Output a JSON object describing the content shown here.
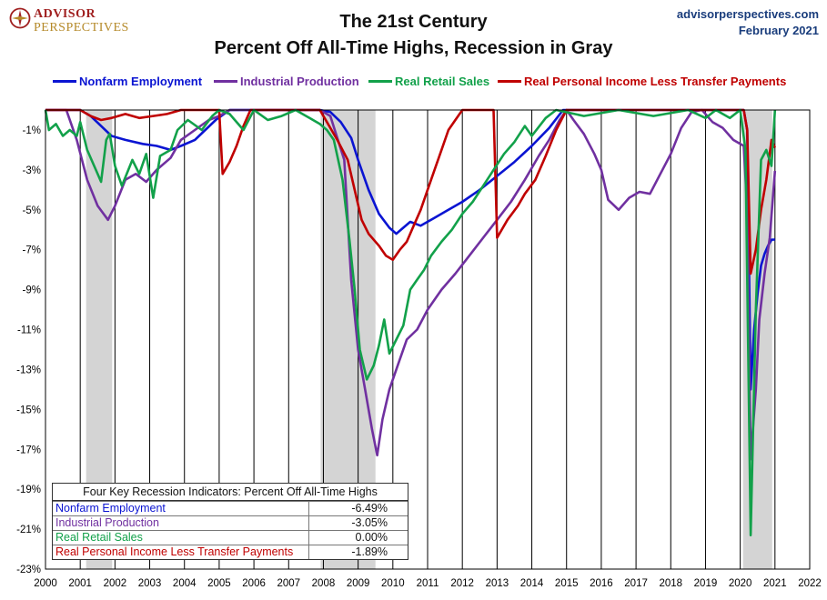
{
  "header": {
    "logo_line1": "ADVISOR",
    "logo_line2": "PERSPECTIVES",
    "title_line1": "The 21st Century",
    "title_line2": "Percent Off All-Time Highs, Recession in Gray",
    "source_site": "advisorperspectives.com",
    "source_date": "February 2021"
  },
  "colors": {
    "Nonfarm Employment": "#0a14d2",
    "Industrial Production": "#7030a0",
    "Real Retail Sales": "#12a14a",
    "Real Personal Income Less Transfer Payments": "#c00000",
    "recession": "#d4d4d4"
  },
  "summary_table": {
    "title": "Four Key Recession Indicators: Percent Off All-Time Highs",
    "rows": [
      {
        "label": "Nonfarm Employment",
        "value": "-6.49%"
      },
      {
        "label": "Industrial Production",
        "value": "-3.05%"
      },
      {
        "label": "Real Retail Sales",
        "value": "0.00%"
      },
      {
        "label": "Real Personal Income Less Transfer Payments",
        "value": "-1.89%"
      }
    ]
  },
  "chart_data": {
    "type": "line",
    "title": "Percent Off All-Time Highs, Recession in Gray",
    "xlabel": "",
    "ylabel": "",
    "xlim": [
      2000,
      2022
    ],
    "ylim": [
      -23,
      0
    ],
    "x_ticks": [
      "2000",
      "2001",
      "2002",
      "2003",
      "2004",
      "2005",
      "2006",
      "2007",
      "2008",
      "2009",
      "2010",
      "2011",
      "2012",
      "2013",
      "2014",
      "2015",
      "2016",
      "2017",
      "2018",
      "2019",
      "2020",
      "2021",
      "2022"
    ],
    "y_ticks": [
      "-1%",
      "-3%",
      "-5%",
      "-7%",
      "-9%",
      "-11%",
      "-13%",
      "-15%",
      "-17%",
      "-19%",
      "-21%",
      "-23%"
    ],
    "legend_position": "top",
    "grid": "vertical",
    "recessions": [
      [
        2001.17,
        2001.92
      ],
      [
        2007.92,
        2009.5
      ],
      [
        2020.08,
        2020.92
      ]
    ],
    "series": [
      {
        "name": "Nonfarm Employment",
        "points": [
          [
            2000.0,
            0
          ],
          [
            2001.0,
            0
          ],
          [
            2001.3,
            -0.3
          ],
          [
            2001.6,
            -0.8
          ],
          [
            2001.9,
            -1.3
          ],
          [
            2002.3,
            -1.5
          ],
          [
            2002.8,
            -1.7
          ],
          [
            2003.2,
            -1.8
          ],
          [
            2003.6,
            -2.0
          ],
          [
            2003.9,
            -1.8
          ],
          [
            2004.3,
            -1.5
          ],
          [
            2004.6,
            -1.0
          ],
          [
            2004.9,
            -0.5
          ],
          [
            2005.3,
            0
          ],
          [
            2007.9,
            0
          ],
          [
            2008.2,
            -0.1
          ],
          [
            2008.5,
            -0.6
          ],
          [
            2008.8,
            -1.4
          ],
          [
            2009.0,
            -2.5
          ],
          [
            2009.3,
            -4.0
          ],
          [
            2009.6,
            -5.2
          ],
          [
            2009.9,
            -5.9
          ],
          [
            2010.1,
            -6.2
          ],
          [
            2010.3,
            -5.9
          ],
          [
            2010.5,
            -5.6
          ],
          [
            2010.8,
            -5.8
          ],
          [
            2011.2,
            -5.4
          ],
          [
            2011.6,
            -5.0
          ],
          [
            2012.0,
            -4.6
          ],
          [
            2012.5,
            -4.0
          ],
          [
            2013.0,
            -3.3
          ],
          [
            2013.5,
            -2.6
          ],
          [
            2014.0,
            -1.8
          ],
          [
            2014.5,
            -0.9
          ],
          [
            2014.9,
            0
          ],
          [
            2020.1,
            0
          ],
          [
            2020.2,
            -1.0
          ],
          [
            2020.3,
            -14.0
          ],
          [
            2020.4,
            -11.0
          ],
          [
            2020.5,
            -9.2
          ],
          [
            2020.6,
            -7.8
          ],
          [
            2020.7,
            -7.2
          ],
          [
            2020.8,
            -6.8
          ],
          [
            2020.9,
            -6.5
          ],
          [
            2021.0,
            -6.49
          ]
        ]
      },
      {
        "name": "Industrial Production",
        "points": [
          [
            2000.0,
            0
          ],
          [
            2000.6,
            0
          ],
          [
            2000.9,
            -1.5
          ],
          [
            2001.2,
            -3.5
          ],
          [
            2001.5,
            -4.8
          ],
          [
            2001.8,
            -5.5
          ],
          [
            2002.0,
            -4.8
          ],
          [
            2002.3,
            -3.5
          ],
          [
            2002.6,
            -3.2
          ],
          [
            2002.9,
            -3.6
          ],
          [
            2003.2,
            -3.0
          ],
          [
            2003.6,
            -2.4
          ],
          [
            2003.9,
            -1.5
          ],
          [
            2004.3,
            -1.0
          ],
          [
            2004.7,
            -0.5
          ],
          [
            2005.0,
            -0.3
          ],
          [
            2005.3,
            0
          ],
          [
            2007.9,
            0
          ],
          [
            2008.2,
            -0.3
          ],
          [
            2008.6,
            -2.5
          ],
          [
            2008.8,
            -8.5
          ],
          [
            2009.0,
            -12.0
          ],
          [
            2009.2,
            -14.0
          ],
          [
            2009.4,
            -16.0
          ],
          [
            2009.55,
            -17.3
          ],
          [
            2009.7,
            -15.5
          ],
          [
            2009.9,
            -14.0
          ],
          [
            2010.1,
            -13.0
          ],
          [
            2010.4,
            -11.5
          ],
          [
            2010.7,
            -11.0
          ],
          [
            2011.0,
            -10.0
          ],
          [
            2011.4,
            -9.0
          ],
          [
            2011.8,
            -8.2
          ],
          [
            2012.2,
            -7.3
          ],
          [
            2012.6,
            -6.4
          ],
          [
            2013.0,
            -5.5
          ],
          [
            2013.4,
            -4.6
          ],
          [
            2013.8,
            -3.5
          ],
          [
            2014.2,
            -2.3
          ],
          [
            2014.5,
            -1.5
          ],
          [
            2014.8,
            -0.5
          ],
          [
            2015.0,
            0
          ],
          [
            2015.2,
            -0.5
          ],
          [
            2015.5,
            -1.2
          ],
          [
            2015.8,
            -2.2
          ],
          [
            2016.0,
            -3.0
          ],
          [
            2016.2,
            -4.5
          ],
          [
            2016.5,
            -5.0
          ],
          [
            2016.8,
            -4.4
          ],
          [
            2017.1,
            -4.1
          ],
          [
            2017.4,
            -4.2
          ],
          [
            2017.7,
            -3.2
          ],
          [
            2018.0,
            -2.2
          ],
          [
            2018.3,
            -0.9
          ],
          [
            2018.6,
            -0.1
          ],
          [
            2018.9,
            0
          ],
          [
            2019.2,
            -0.6
          ],
          [
            2019.5,
            -0.9
          ],
          [
            2019.8,
            -1.5
          ],
          [
            2020.1,
            -1.8
          ],
          [
            2020.2,
            -5.0
          ],
          [
            2020.3,
            -17.5
          ],
          [
            2020.45,
            -14.0
          ],
          [
            2020.55,
            -10.5
          ],
          [
            2020.7,
            -8.2
          ],
          [
            2020.85,
            -6.4
          ],
          [
            2021.0,
            -3.05
          ]
        ]
      },
      {
        "name": "Real Retail Sales",
        "points": [
          [
            2000.0,
            0
          ],
          [
            2000.1,
            -1.0
          ],
          [
            2000.3,
            -0.7
          ],
          [
            2000.5,
            -1.3
          ],
          [
            2000.7,
            -1.0
          ],
          [
            2000.9,
            -1.3
          ],
          [
            2001.0,
            -0.6
          ],
          [
            2001.2,
            -2.0
          ],
          [
            2001.4,
            -2.8
          ],
          [
            2001.6,
            -3.6
          ],
          [
            2001.75,
            -1.5
          ],
          [
            2001.85,
            -1.2
          ],
          [
            2002.0,
            -2.8
          ],
          [
            2002.2,
            -3.8
          ],
          [
            2002.5,
            -2.5
          ],
          [
            2002.7,
            -3.2
          ],
          [
            2002.9,
            -2.2
          ],
          [
            2003.1,
            -4.4
          ],
          [
            2003.3,
            -2.3
          ],
          [
            2003.6,
            -2.0
          ],
          [
            2003.8,
            -1.0
          ],
          [
            2004.1,
            -0.5
          ],
          [
            2004.5,
            -1.0
          ],
          [
            2004.8,
            -0.3
          ],
          [
            2005.0,
            0
          ],
          [
            2005.3,
            -0.2
          ],
          [
            2005.7,
            -1.0
          ],
          [
            2006.0,
            0
          ],
          [
            2006.4,
            -0.5
          ],
          [
            2006.8,
            -0.3
          ],
          [
            2007.2,
            0
          ],
          [
            2007.6,
            -0.4
          ],
          [
            2007.9,
            -0.7
          ],
          [
            2008.1,
            -1.0
          ],
          [
            2008.3,
            -1.5
          ],
          [
            2008.55,
            -3.5
          ],
          [
            2008.75,
            -6.5
          ],
          [
            2008.9,
            -9.0
          ],
          [
            2009.05,
            -12.0
          ],
          [
            2009.25,
            -13.5
          ],
          [
            2009.45,
            -12.8
          ],
          [
            2009.6,
            -11.8
          ],
          [
            2009.75,
            -10.5
          ],
          [
            2009.9,
            -12.2
          ],
          [
            2010.1,
            -11.5
          ],
          [
            2010.3,
            -10.8
          ],
          [
            2010.5,
            -9.0
          ],
          [
            2010.7,
            -8.5
          ],
          [
            2010.9,
            -8.0
          ],
          [
            2011.1,
            -7.3
          ],
          [
            2011.4,
            -6.6
          ],
          [
            2011.7,
            -6.0
          ],
          [
            2012.0,
            -5.2
          ],
          [
            2012.3,
            -4.6
          ],
          [
            2012.6,
            -3.8
          ],
          [
            2012.9,
            -3.0
          ],
          [
            2013.2,
            -2.2
          ],
          [
            2013.5,
            -1.6
          ],
          [
            2013.8,
            -0.8
          ],
          [
            2014.0,
            -1.3
          ],
          [
            2014.4,
            -0.4
          ],
          [
            2014.7,
            0
          ],
          [
            2015.5,
            -0.3
          ],
          [
            2016.5,
            0
          ],
          [
            2017.5,
            -0.3
          ],
          [
            2018.5,
            0
          ],
          [
            2019.0,
            -0.4
          ],
          [
            2019.3,
            0
          ],
          [
            2019.7,
            -0.4
          ],
          [
            2020.0,
            0
          ],
          [
            2020.15,
            -2.0
          ],
          [
            2020.3,
            -21.3
          ],
          [
            2020.45,
            -10.0
          ],
          [
            2020.6,
            -2.5
          ],
          [
            2020.75,
            -2.0
          ],
          [
            2020.9,
            -2.8
          ],
          [
            2021.0,
            0
          ]
        ]
      },
      {
        "name": "Real Personal Income Less Transfer Payments",
        "points": [
          [
            2000.0,
            0
          ],
          [
            2001.0,
            0
          ],
          [
            2001.3,
            -0.3
          ],
          [
            2001.6,
            -0.5
          ],
          [
            2001.9,
            -0.4
          ],
          [
            2002.3,
            -0.2
          ],
          [
            2002.7,
            -0.4
          ],
          [
            2003.1,
            -0.3
          ],
          [
            2003.5,
            -0.2
          ],
          [
            2003.9,
            0
          ],
          [
            2005.0,
            0
          ],
          [
            2005.1,
            -3.2
          ],
          [
            2005.3,
            -2.6
          ],
          [
            2005.5,
            -1.8
          ],
          [
            2005.7,
            -0.8
          ],
          [
            2005.9,
            0
          ],
          [
            2007.9,
            0
          ],
          [
            2008.1,
            -0.6
          ],
          [
            2008.4,
            -1.5
          ],
          [
            2008.7,
            -2.5
          ],
          [
            2008.9,
            -4.0
          ],
          [
            2009.1,
            -5.5
          ],
          [
            2009.3,
            -6.2
          ],
          [
            2009.6,
            -6.8
          ],
          [
            2009.8,
            -7.3
          ],
          [
            2010.0,
            -7.5
          ],
          [
            2010.2,
            -7.0
          ],
          [
            2010.4,
            -6.6
          ],
          [
            2010.6,
            -5.8
          ],
          [
            2010.8,
            -5.0
          ],
          [
            2011.0,
            -4.0
          ],
          [
            2011.2,
            -3.0
          ],
          [
            2011.4,
            -2.0
          ],
          [
            2011.6,
            -1.0
          ],
          [
            2011.8,
            -0.5
          ],
          [
            2012.0,
            0
          ],
          [
            2012.9,
            0
          ],
          [
            2013.0,
            -6.4
          ],
          [
            2013.3,
            -5.5
          ],
          [
            2013.6,
            -4.8
          ],
          [
            2013.8,
            -4.2
          ],
          [
            2014.1,
            -3.5
          ],
          [
            2014.4,
            -2.3
          ],
          [
            2014.7,
            -1.0
          ],
          [
            2015.0,
            0
          ],
          [
            2020.1,
            0
          ],
          [
            2020.2,
            -1.0
          ],
          [
            2020.3,
            -8.2
          ],
          [
            2020.45,
            -7.0
          ],
          [
            2020.6,
            -5.0
          ],
          [
            2020.75,
            -3.5
          ],
          [
            2020.9,
            -1.5
          ],
          [
            2021.0,
            -1.89
          ]
        ]
      }
    ]
  }
}
